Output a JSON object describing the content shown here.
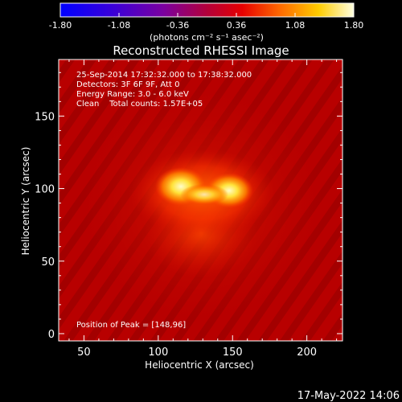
{
  "colorbar": {
    "tick_labels": [
      "-1.80",
      "-1.08",
      "-0.36",
      "0.36",
      "1.08",
      "1.80"
    ],
    "tick_values": [
      -1.8,
      -1.08,
      -0.36,
      0.36,
      1.08,
      1.8
    ],
    "range": [
      -1.8,
      1.8
    ],
    "units_label": "(photons cm⁻² s⁻¹ asec⁻²)"
  },
  "title": "Reconstructed RHESSI Image",
  "info": {
    "line1": "25-Sep-2014 17:32:32.000 to 17:38:32.000",
    "line2": "Detectors: 3F 6F 9F, Att 0",
    "line3": "Energy Range: 3.0 - 6.0 keV",
    "line4": "Clean    Total counts: 1.57E+05"
  },
  "peak_label": "Position of Peak = [148,96]",
  "axes": {
    "xlabel": "Heliocentric X (arcsec)",
    "ylabel": "Heliocentric Y (arcsec)",
    "x_range": [
      33,
      224
    ],
    "y_range": [
      -5,
      189
    ],
    "x_ticks": [
      50,
      100,
      150,
      200
    ],
    "y_ticks": [
      0,
      50,
      100,
      150
    ],
    "x_tick_labels": [
      "50",
      "100",
      "150",
      "200"
    ],
    "y_tick_labels": [
      "0",
      "50",
      "100",
      "150"
    ]
  },
  "footer_date": "17-May-2022 14:06",
  "colors": {
    "background": "#000000",
    "frame": "#ffffff",
    "image_base": "#b80000"
  }
}
